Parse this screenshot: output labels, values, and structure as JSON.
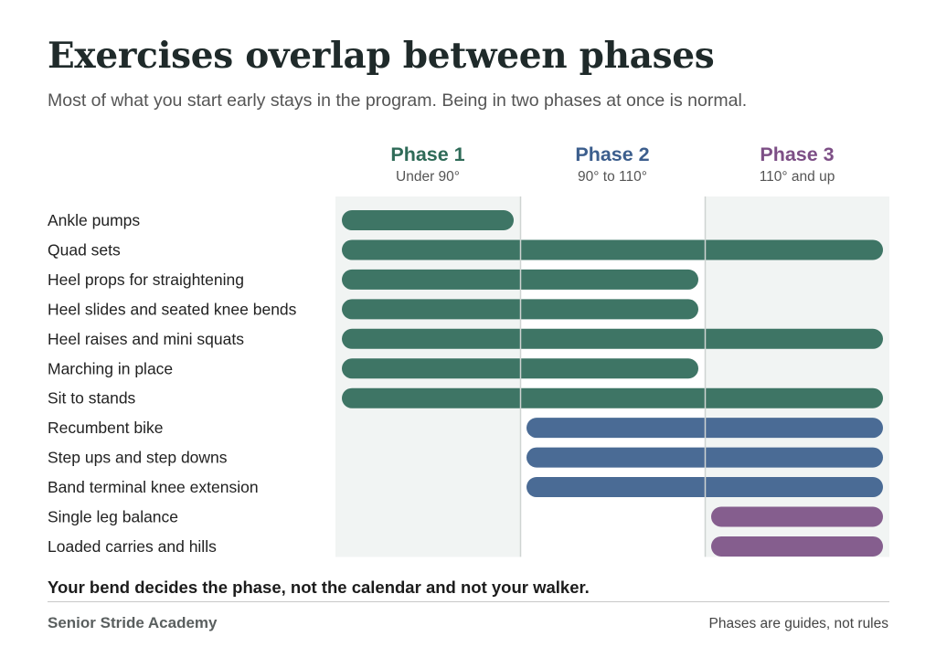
{
  "title": "Exercises overlap between phases",
  "subtitle": "Most of what you start early stays in the program. Being in two phases at once is normal.",
  "chart_data": {
    "type": "bar",
    "orientation": "horizontal-range",
    "phases": [
      {
        "label": "Phase 1",
        "range_label": "Under 90°",
        "color": "#3e7565"
      },
      {
        "label": "Phase 2",
        "range_label": "90° to 110°",
        "color": "#4a6b95"
      },
      {
        "label": "Phase 3",
        "range_label": "110° and up",
        "color": "#855e8e"
      }
    ],
    "phase_label_colors": [
      "#2f6b58",
      "#3c5e8d",
      "#7d4f86"
    ],
    "shaded_phase_background": "#f1f4f3",
    "exercises": [
      {
        "name": "Ankle pumps",
        "start_phase": 1,
        "end_phase": 1
      },
      {
        "name": "Quad sets",
        "start_phase": 1,
        "end_phase": 3
      },
      {
        "name": "Heel props for straightening",
        "start_phase": 1,
        "end_phase": 2
      },
      {
        "name": "Heel slides and seated knee bends",
        "start_phase": 1,
        "end_phase": 2
      },
      {
        "name": "Heel raises and mini squats",
        "start_phase": 1,
        "end_phase": 3
      },
      {
        "name": "Marching in place",
        "start_phase": 1,
        "end_phase": 2
      },
      {
        "name": "Sit to stands",
        "start_phase": 1,
        "end_phase": 3
      },
      {
        "name": "Recumbent bike",
        "start_phase": 2,
        "end_phase": 3
      },
      {
        "name": "Step ups and step downs",
        "start_phase": 2,
        "end_phase": 3
      },
      {
        "name": "Band terminal knee extension",
        "start_phase": 2,
        "end_phase": 3
      },
      {
        "name": "Single leg balance",
        "start_phase": 3,
        "end_phase": 3
      },
      {
        "name": "Loaded carries and hills",
        "start_phase": 3,
        "end_phase": 3
      }
    ]
  },
  "footer": {
    "note": "Your bend decides the phase, not the calendar and not your walker.",
    "brand": "Senior Stride Academy",
    "tagline": "Phases are guides, not rules"
  }
}
